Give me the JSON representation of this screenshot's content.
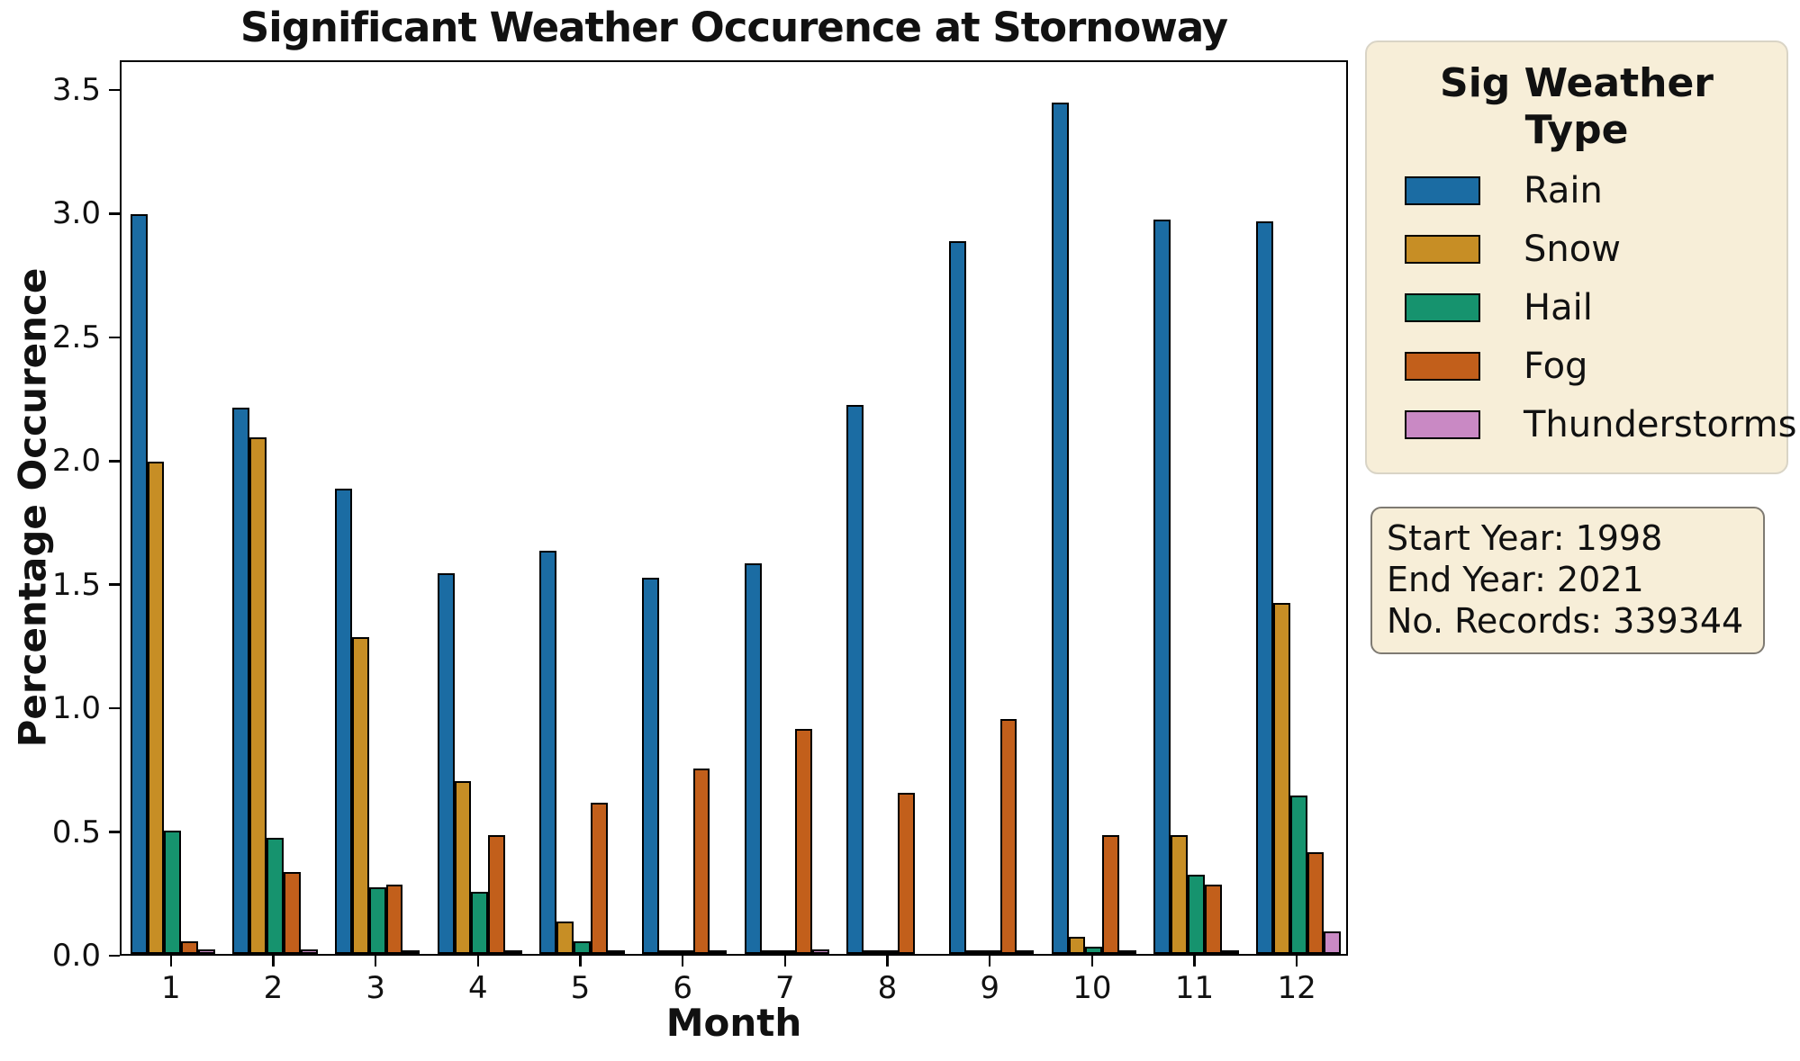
{
  "chart_data": {
    "type": "bar",
    "title": "Significant Weather Occurence at Stornoway",
    "xlabel": "Month",
    "ylabel": "Percentage Occurence",
    "categories": [
      "1",
      "2",
      "3",
      "4",
      "5",
      "6",
      "7",
      "8",
      "9",
      "10",
      "11",
      "12"
    ],
    "series": [
      {
        "name": "Rain",
        "color": "#1b6ca3",
        "values": [
          2.99,
          2.21,
          1.88,
          1.54,
          1.63,
          1.52,
          1.58,
          2.22,
          2.88,
          3.44,
          2.97,
          2.96
        ]
      },
      {
        "name": "Snow",
        "color": "#c78e25",
        "values": [
          1.99,
          2.09,
          1.28,
          0.7,
          0.13,
          0.01,
          0.005,
          0.01,
          0.01,
          0.07,
          0.48,
          1.42
        ]
      },
      {
        "name": "Hail",
        "color": "#16936e",
        "values": [
          0.5,
          0.47,
          0.27,
          0.25,
          0.05,
          0.005,
          0.005,
          0.005,
          0.005,
          0.03,
          0.32,
          0.64
        ]
      },
      {
        "name": "Fog",
        "color": "#c25f1b",
        "values": [
          0.05,
          0.33,
          0.28,
          0.48,
          0.61,
          0.75,
          0.91,
          0.65,
          0.95,
          0.48,
          0.28,
          0.41
        ]
      },
      {
        "name": "Thunderstorms",
        "color": "#c989c4",
        "values": [
          0.02,
          0.02,
          0.005,
          0.01,
          0.005,
          0.005,
          0.02,
          0,
          0.005,
          0.005,
          0.015,
          0.09
        ]
      }
    ],
    "ylim": [
      0,
      3.62
    ],
    "yticks": [
      "0.0",
      "0.5",
      "1.0",
      "1.5",
      "2.0",
      "2.5",
      "3.0",
      "3.5"
    ],
    "grid": false,
    "bar_edge_color": "#000000",
    "legend_position": "right"
  },
  "legend": {
    "title": "Sig Weather Type",
    "background": "#f7eed8"
  },
  "info_box": {
    "background": "#f7eed8",
    "lines": [
      "Start Year: 1998",
      "End Year: 2021",
      "No. Records: 339344"
    ]
  }
}
